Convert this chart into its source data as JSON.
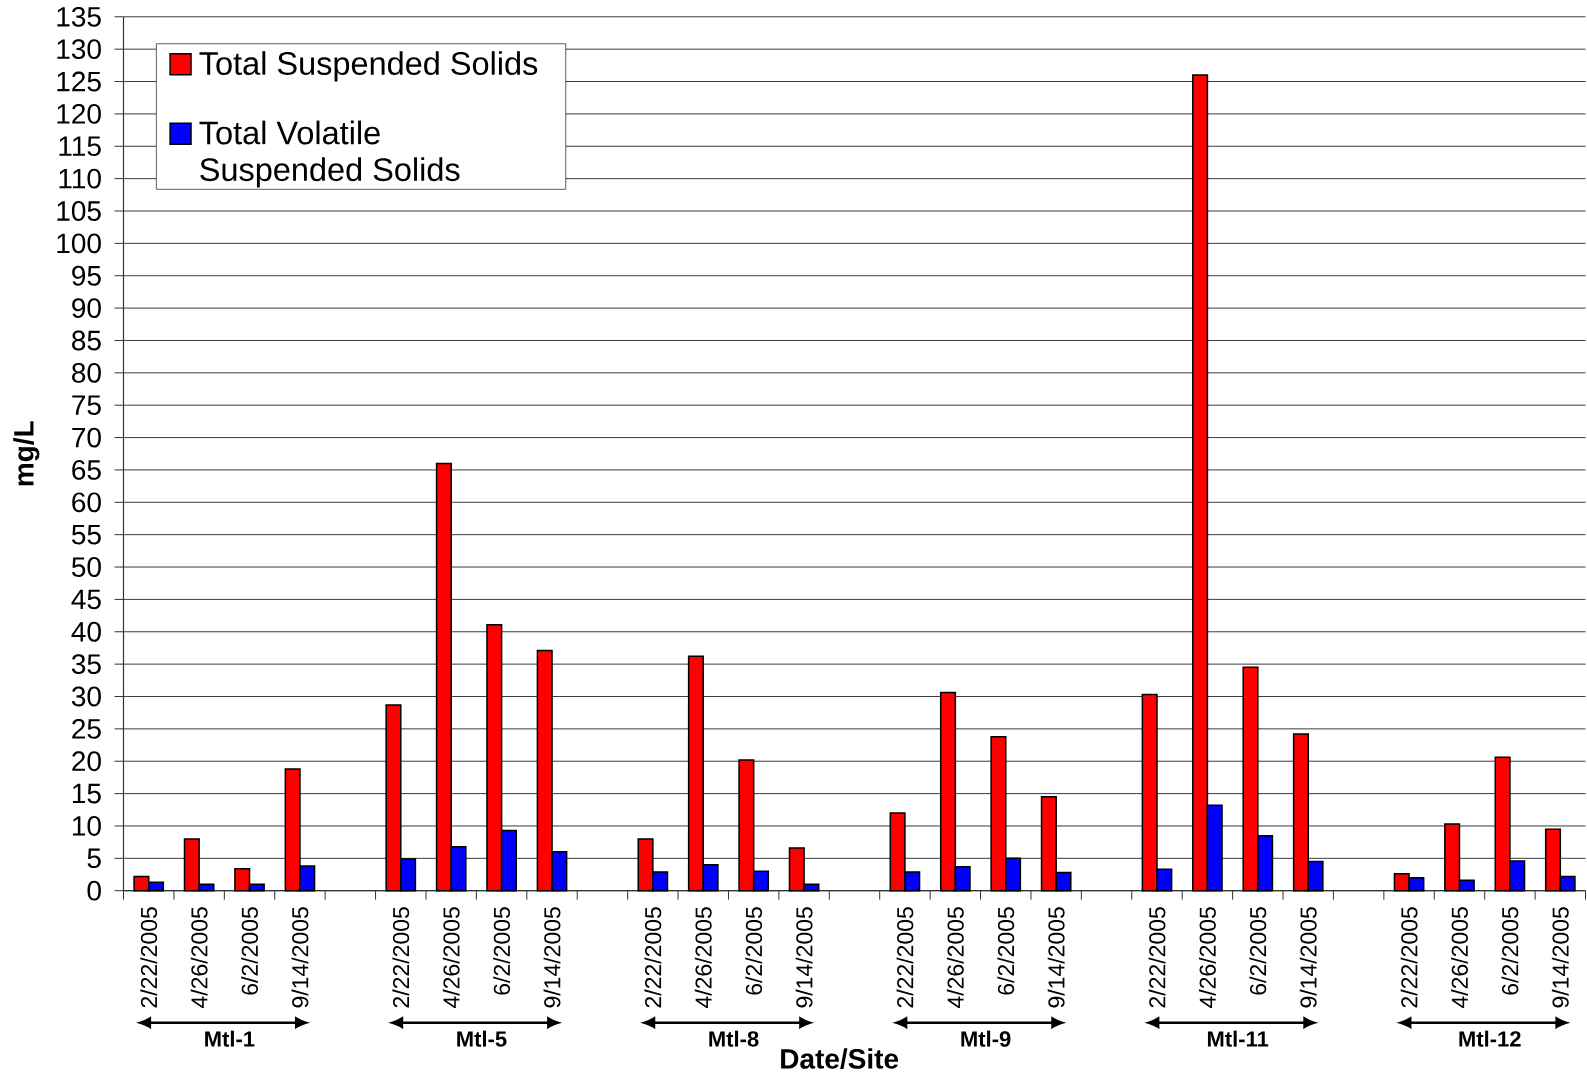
{
  "chart_data": {
    "type": "bar",
    "xlabel": "Date/Site",
    "ylabel": "mg/L",
    "categories": [
      "2/22/2005",
      "4/26/2005",
      "6/2/2005",
      "9/14/2005",
      null,
      "2/22/2005",
      "4/26/2005",
      "6/2/2005",
      "9/14/2005",
      null,
      "2/22/2005",
      "4/26/2005",
      "6/2/2005",
      "9/14/2005",
      null,
      "2/22/2005",
      "4/26/2005",
      "6/2/2005",
      "9/14/2005",
      null,
      "2/22/2005",
      "4/26/2005",
      "6/2/2005",
      "9/14/2005",
      null,
      "2/22/2005",
      "4/26/2005",
      "6/2/2005",
      "9/14/2005"
    ],
    "series": [
      {
        "name": "Total Suspended Solids",
        "color": "#ff0000",
        "values": [
          2.2,
          8.0,
          3.4,
          18.8,
          null,
          28.7,
          66,
          41.1,
          37.1,
          null,
          8.0,
          36.2,
          20.2,
          6.6,
          null,
          12.0,
          30.6,
          23.8,
          14.5,
          null,
          30.3,
          126,
          34.5,
          24.2,
          null,
          2.6,
          10.3,
          20.6,
          9.5
        ]
      },
      {
        "name": "Total Volatile Suspended Solids",
        "color": "#0000ff",
        "values": [
          1.3,
          1.0,
          1.0,
          3.8,
          null,
          4.9,
          6.8,
          9.3,
          6.0,
          null,
          2.9,
          4.0,
          3.0,
          1.0,
          null,
          2.9,
          3.7,
          5.0,
          2.8,
          null,
          3.3,
          13.2,
          8.5,
          4.5,
          null,
          2.0,
          1.6,
          4.6,
          2.2
        ]
      }
    ],
    "ylim": [
      0,
      135
    ],
    "yticks": [
      0,
      5,
      10,
      15,
      20,
      25,
      30,
      35,
      40,
      45,
      50,
      55,
      60,
      65,
      70,
      75,
      80,
      85,
      90,
      95,
      100,
      105,
      110,
      115,
      120,
      125,
      130,
      135
    ],
    "grid": "y",
    "legend": "top left",
    "annotations": [
      "Mtl-1",
      "Mtl-5",
      "Mtl-8",
      "Mtl-9",
      "Mtl-11",
      "Mtl-12"
    ]
  }
}
